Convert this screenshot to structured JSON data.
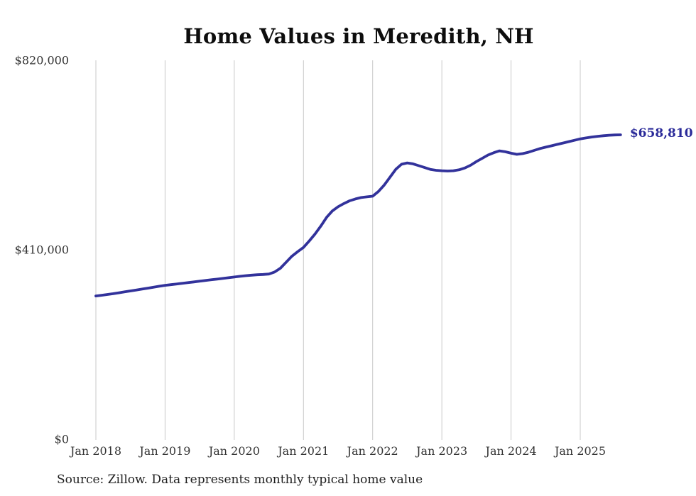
{
  "chart_data": {
    "type": "line",
    "title": "Home Values in Meredith, NH",
    "source_note": "Source: Zillow. Data represents monthly typical home value",
    "xlabel": "",
    "ylabel": "",
    "legend": "none",
    "grid": "vertical-only",
    "ylim": [
      0,
      820000
    ],
    "x_months": {
      "start": "2018-01",
      "end": "2025-08",
      "step_months": 1,
      "count": 92
    },
    "x_tick_labels": [
      "Jan 2018",
      "Jan 2019",
      "Jan 2020",
      "Jan 2021",
      "Jan 2022",
      "Jan 2023",
      "Jan 2024",
      "Jan 2025"
    ],
    "x_tick_month_indices": [
      0,
      12,
      24,
      36,
      48,
      60,
      72,
      84
    ],
    "y_ticks": [
      {
        "value": 820000,
        "label": "$820,000"
      },
      {
        "value": 410000,
        "label": "$410,000"
      },
      {
        "value": 0,
        "label": "$0"
      }
    ],
    "series": [
      {
        "name": "Monthly typical home value",
        "values": [
          310000,
          311500,
          313200,
          315000,
          317000,
          319000,
          321000,
          323000,
          325000,
          327000,
          329000,
          331000,
          333000,
          334500,
          336000,
          337500,
          339000,
          340500,
          342000,
          343500,
          345000,
          346500,
          348000,
          349500,
          351000,
          352500,
          354000,
          355000,
          356000,
          356500,
          357500,
          362000,
          370000,
          383000,
          396000,
          406000,
          415000,
          429000,
          444000,
          461000,
          480000,
          494000,
          503000,
          510000,
          516000,
          520000,
          523000,
          524500,
          526000,
          536000,
          550000,
          567000,
          584000,
          595000,
          598000,
          596000,
          592000,
          588000,
          584000,
          582000,
          581000,
          580500,
          581000,
          583000,
          587000,
          593000,
          601000,
          608000,
          615000,
          620000,
          624000,
          622000,
          619000,
          616500,
          618000,
          621000,
          625000,
          629000,
          632000,
          635000,
          638000,
          641000,
          644000,
          647000,
          650000,
          652000,
          654000,
          655500,
          656800,
          657800,
          658400,
          658810
        ]
      }
    ],
    "end_label": {
      "text": "$658,810",
      "value": 658810,
      "color": "#2a2a99"
    },
    "line_color": "#32329b",
    "gridline_color": "#c9c9c9",
    "axis_text_color": "#333333",
    "title_color": "#0d0d0d"
  }
}
